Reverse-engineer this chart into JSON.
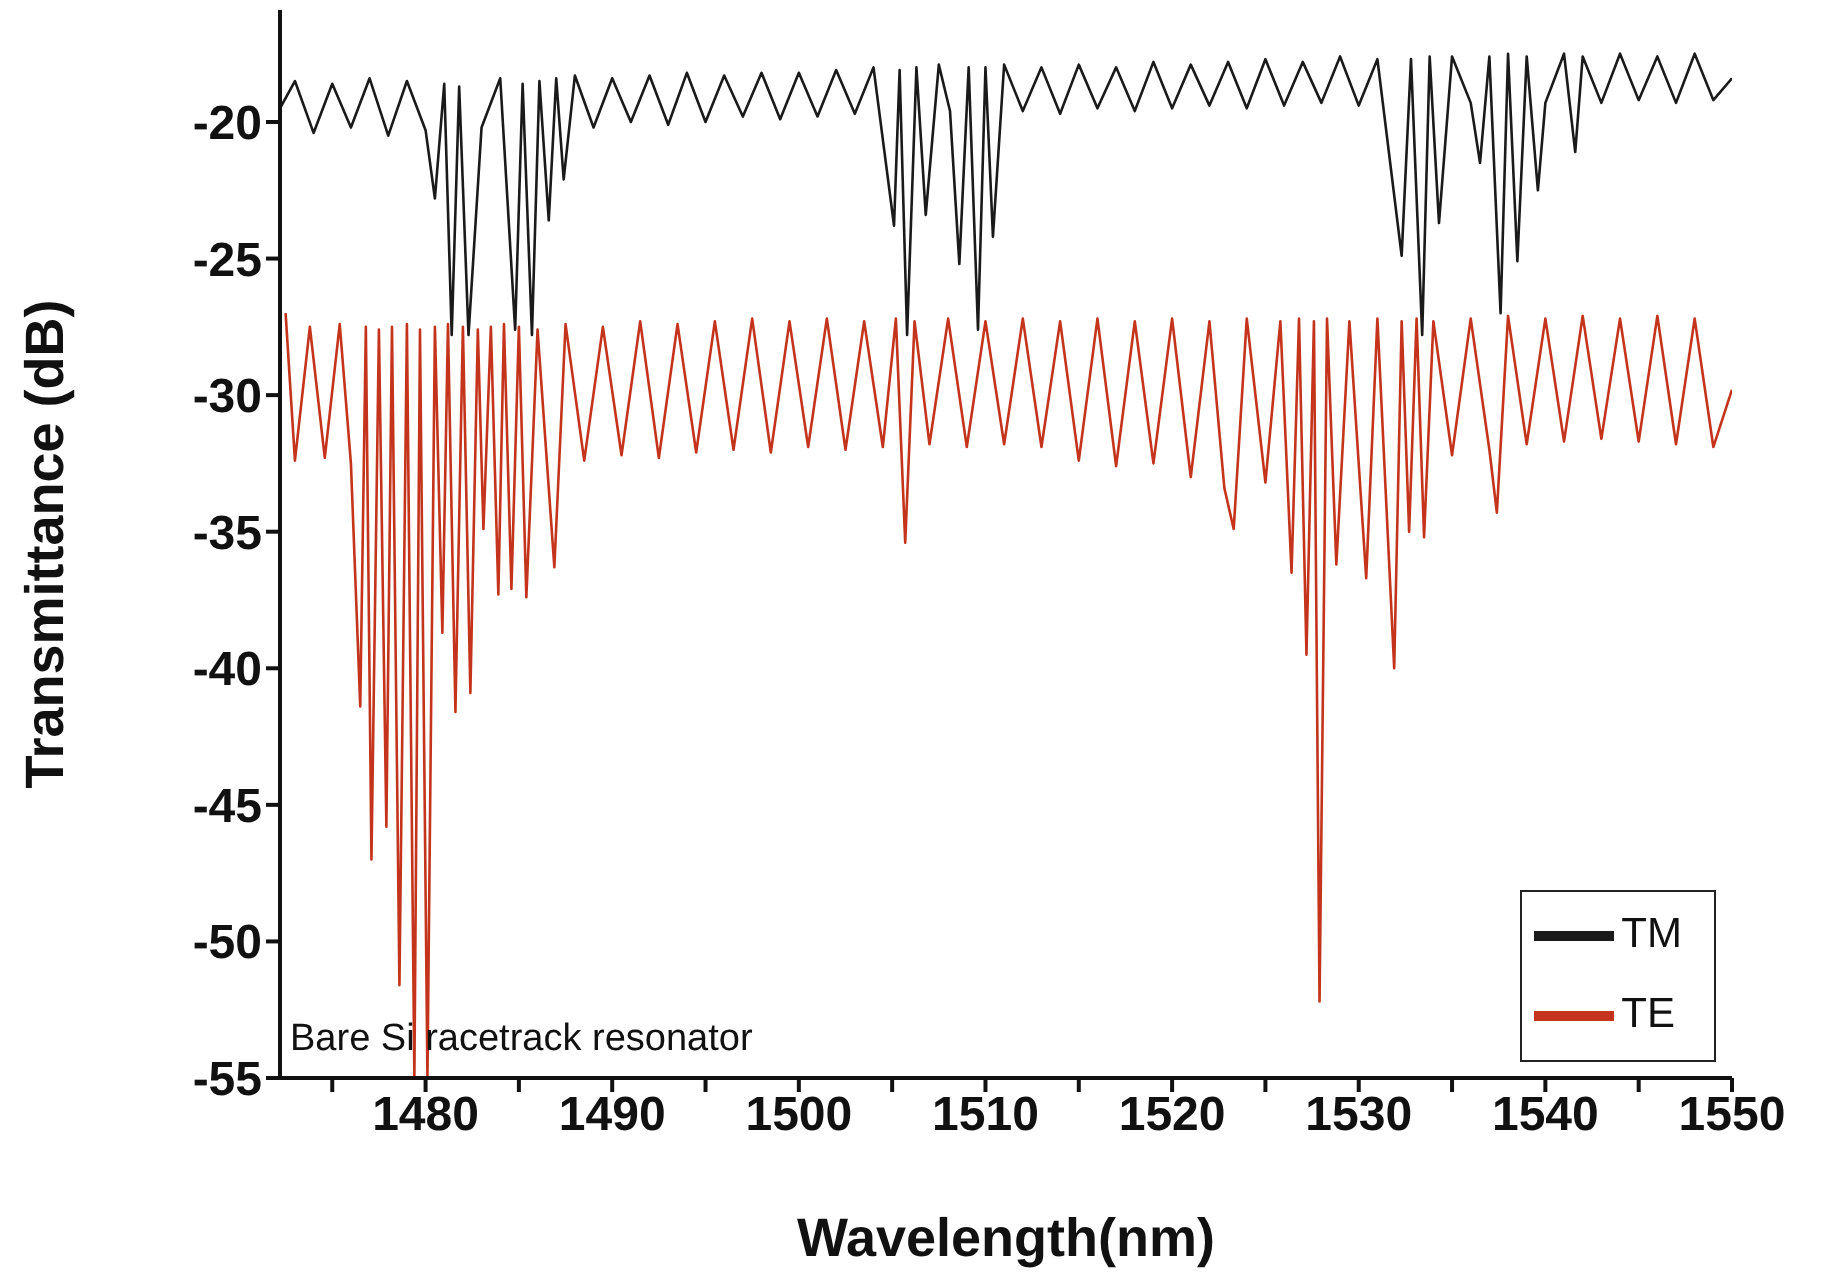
{
  "chart_data": {
    "type": "line",
    "xlabel": "Wavelength(nm)",
    "ylabel": "Transmittance (dB)",
    "xlim": [
      1472.2,
      1550
    ],
    "ylim": [
      -55,
      -15.9
    ],
    "xticks": [
      {
        "value": 1475,
        "label": null
      },
      1480,
      {
        "value": 1485,
        "label": null
      },
      1490,
      {
        "value": 1495,
        "label": null
      },
      1500,
      {
        "value": 1505,
        "label": null
      },
      1510,
      {
        "value": 1515,
        "label": null
      },
      1520,
      {
        "value": 1525,
        "label": null
      },
      1530,
      {
        "value": 1535,
        "label": null
      },
      1540,
      {
        "value": 1545,
        "label": null
      },
      1550
    ],
    "yticks": [
      -55,
      -50,
      -45,
      -40,
      -35,
      -30,
      -25,
      -20
    ],
    "legend": "bottom right",
    "marker": "none",
    "line_style": "solid",
    "annotations": [
      "Bare Si racetrack resonator"
    ],
    "series": [
      {
        "name": "TM",
        "color": "#1a1a1a",
        "x": [
          1472.2,
          1473,
          1474,
          1475,
          1476,
          1477,
          1478,
          1479,
          1480,
          1480.5,
          1481,
          1481.4,
          1481.8,
          1482.3,
          1483,
          1484,
          1484.8,
          1485.2,
          1485.7,
          1486.1,
          1486.6,
          1487,
          1487.4,
          1488,
          1489,
          1490,
          1491,
          1492,
          1493,
          1494,
          1495,
          1496,
          1497,
          1498,
          1499,
          1500,
          1501,
          1502,
          1503,
          1504,
          1505.1,
          1505.4,
          1505.8,
          1506.3,
          1506.8,
          1507.5,
          1508.1,
          1508.6,
          1509.1,
          1509.6,
          1510,
          1510.4,
          1511,
          1512,
          1513,
          1514,
          1515,
          1516,
          1517,
          1518,
          1519,
          1520,
          1521,
          1522,
          1523,
          1524,
          1525,
          1526,
          1527,
          1528,
          1529,
          1530,
          1531,
          1532.3,
          1532.8,
          1533.4,
          1533.8,
          1534.3,
          1535,
          1536,
          1536.5,
          1537,
          1537.6,
          1538,
          1538.5,
          1539,
          1539.6,
          1540,
          1541,
          1541.6,
          1542,
          1543,
          1544,
          1545,
          1546,
          1547,
          1548,
          1549,
          1550
        ],
        "values": [
          -19.5,
          -18.5,
          -20.4,
          -18.6,
          -20.2,
          -18.4,
          -20.5,
          -18.5,
          -20.3,
          -22.8,
          -18.6,
          -27.8,
          -18.7,
          -27.8,
          -20.2,
          -18.4,
          -27.6,
          -18.6,
          -27.8,
          -18.5,
          -23.6,
          -18.4,
          -22.1,
          -18.3,
          -20.2,
          -18.4,
          -20.0,
          -18.3,
          -20.1,
          -18.2,
          -20.0,
          -18.3,
          -19.8,
          -18.2,
          -19.9,
          -18.2,
          -19.8,
          -18.1,
          -19.7,
          -18.0,
          -23.8,
          -18.1,
          -27.8,
          -18.0,
          -23.4,
          -17.9,
          -19.6,
          -25.2,
          -18.0,
          -27.6,
          -18.0,
          -24.2,
          -17.9,
          -19.6,
          -18.0,
          -19.7,
          -17.9,
          -19.5,
          -18.0,
          -19.6,
          -17.8,
          -19.5,
          -17.9,
          -19.4,
          -17.8,
          -19.5,
          -17.7,
          -19.4,
          -17.8,
          -19.3,
          -17.6,
          -19.4,
          -17.7,
          -24.9,
          -17.7,
          -27.8,
          -17.6,
          -23.7,
          -17.6,
          -19.3,
          -21.5,
          -17.6,
          -27.0,
          -17.5,
          -25.1,
          -17.6,
          -22.5,
          -19.3,
          -17.5,
          -21.1,
          -17.6,
          -19.3,
          -17.5,
          -19.2,
          -17.6,
          -19.3,
          -17.5,
          -19.2,
          -18.4
        ]
      },
      {
        "name": "TE",
        "color": "#c4341c",
        "x": [
          1472.5,
          1473,
          1473.8,
          1474.6,
          1475.4,
          1476,
          1476.5,
          1476.8,
          1477.1,
          1477.5,
          1477.9,
          1478.2,
          1478.6,
          1479,
          1479.4,
          1479.7,
          1480.1,
          1480.5,
          1480.9,
          1481.2,
          1481.6,
          1482,
          1482.4,
          1482.8,
          1483.1,
          1483.5,
          1483.9,
          1484.2,
          1484.6,
          1485,
          1485.4,
          1486,
          1486.9,
          1487.5,
          1488.5,
          1489.5,
          1490.5,
          1491.5,
          1492.5,
          1493.5,
          1494.5,
          1495.5,
          1496.5,
          1497.5,
          1498.5,
          1499.5,
          1500.5,
          1501.5,
          1502.5,
          1503.5,
          1504.5,
          1505.2,
          1505.7,
          1506.2,
          1507,
          1508,
          1509,
          1510,
          1511,
          1512,
          1513,
          1514,
          1515,
          1516,
          1517,
          1518,
          1519,
          1520,
          1521,
          1522,
          1522.8,
          1523.3,
          1524,
          1525,
          1525.8,
          1526.4,
          1526.8,
          1527.2,
          1527.6,
          1527.9,
          1528.3,
          1528.8,
          1529.5,
          1530.4,
          1531,
          1531.9,
          1532.3,
          1532.7,
          1533.1,
          1533.5,
          1534,
          1535,
          1536,
          1537,
          1537.4,
          1538,
          1539,
          1540,
          1541,
          1542,
          1543,
          1544,
          1545,
          1546,
          1547,
          1548,
          1549,
          1550
        ],
        "values": [
          -27.0,
          -32.4,
          -27.5,
          -32.3,
          -27.4,
          -32.5,
          -41.4,
          -27.5,
          -47.0,
          -27.6,
          -45.8,
          -27.5,
          -51.6,
          -27.4,
          -55,
          -27.6,
          -55,
          -27.5,
          -38.7,
          -27.4,
          -41.6,
          -27.5,
          -40.9,
          -27.6,
          -34.9,
          -27.5,
          -37.3,
          -27.4,
          -37.1,
          -27.5,
          -37.4,
          -27.6,
          -36.3,
          -27.4,
          -32.4,
          -27.5,
          -32.2,
          -27.3,
          -32.3,
          -27.4,
          -32.1,
          -27.3,
          -32.0,
          -27.2,
          -32.1,
          -27.3,
          -31.9,
          -27.2,
          -32.0,
          -27.3,
          -31.9,
          -27.2,
          -35.4,
          -27.3,
          -31.8,
          -27.2,
          -31.9,
          -27.3,
          -31.8,
          -27.2,
          -31.9,
          -27.3,
          -32.4,
          -27.2,
          -32.6,
          -27.3,
          -32.5,
          -27.2,
          -33.0,
          -27.3,
          -33.4,
          -34.9,
          -27.2,
          -33.2,
          -27.3,
          -36.5,
          -27.2,
          -39.5,
          -27.3,
          -52.2,
          -27.2,
          -36.2,
          -27.3,
          -36.7,
          -27.2,
          -40.0,
          -27.3,
          -35.0,
          -27.2,
          -35.2,
          -27.3,
          -32.2,
          -27.2,
          -32.0,
          -34.3,
          -27.1,
          -31.8,
          -27.2,
          -31.7,
          -27.1,
          -31.6,
          -27.2,
          -31.7,
          -27.1,
          -31.8,
          -27.2,
          -31.9,
          -29.8
        ]
      }
    ]
  }
}
